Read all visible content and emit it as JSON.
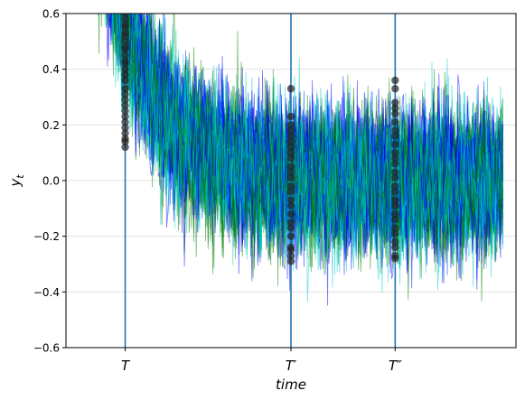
{
  "chart_data": {
    "type": "line",
    "title": "",
    "xlabel": "time",
    "ylabel": "y_t",
    "xlim": [
      -20,
      360
    ],
    "ylim": [
      -0.6,
      0.6
    ],
    "yticks": [
      -0.6,
      -0.4,
      -0.2,
      0.0,
      0.2,
      0.4,
      0.6
    ],
    "ytick_labels": [
      "−0.6",
      "−0.4",
      "−0.2",
      "0.0",
      "0.2",
      "0.4",
      "0.6"
    ],
    "grid": "horizontal",
    "legend": "none",
    "series_colors": [
      "#0000ff",
      "#008000",
      "#00cccc"
    ],
    "series_count": 60,
    "n_points": 350,
    "decay": {
      "start_level": 1.2,
      "rate": 0.025,
      "noise_sd": 0.12
    },
    "vlines": [
      {
        "x": 30,
        "label": "T",
        "color": "#1f77b4"
      },
      {
        "x": 170,
        "label": "T′",
        "color": "#1f77b4"
      },
      {
        "x": 258,
        "label": "T″",
        "color": "#1f77b4"
      }
    ],
    "marker_color": "#222222",
    "markers": [
      {
        "x": 30,
        "y": [
          0.6,
          0.58,
          0.56,
          0.55,
          0.53,
          0.52,
          0.5,
          0.48,
          0.47,
          0.45,
          0.43,
          0.42,
          0.4,
          0.38,
          0.36,
          0.33,
          0.31,
          0.29,
          0.27,
          0.25,
          0.23,
          0.21,
          0.19,
          0.17,
          0.15,
          0.14,
          0.12
        ]
      },
      {
        "x": 170,
        "y": [
          0.33,
          0.23,
          0.2,
          0.18,
          0.16,
          0.14,
          0.12,
          0.1,
          0.08,
          0.05,
          0.03,
          0.01,
          -0.02,
          -0.04,
          -0.07,
          -0.09,
          -0.12,
          -0.15,
          -0.17,
          -0.2,
          -0.24,
          -0.25,
          -0.27,
          -0.29
        ]
      },
      {
        "x": 258,
        "y": [
          0.36,
          0.33,
          0.28,
          0.26,
          0.24,
          0.21,
          0.18,
          0.16,
          0.13,
          0.1,
          0.08,
          0.06,
          0.03,
          0.01,
          -0.02,
          -0.04,
          -0.07,
          -0.09,
          -0.12,
          -0.14,
          -0.17,
          -0.19,
          -0.22,
          -0.24,
          -0.27,
          -0.28
        ]
      }
    ]
  }
}
